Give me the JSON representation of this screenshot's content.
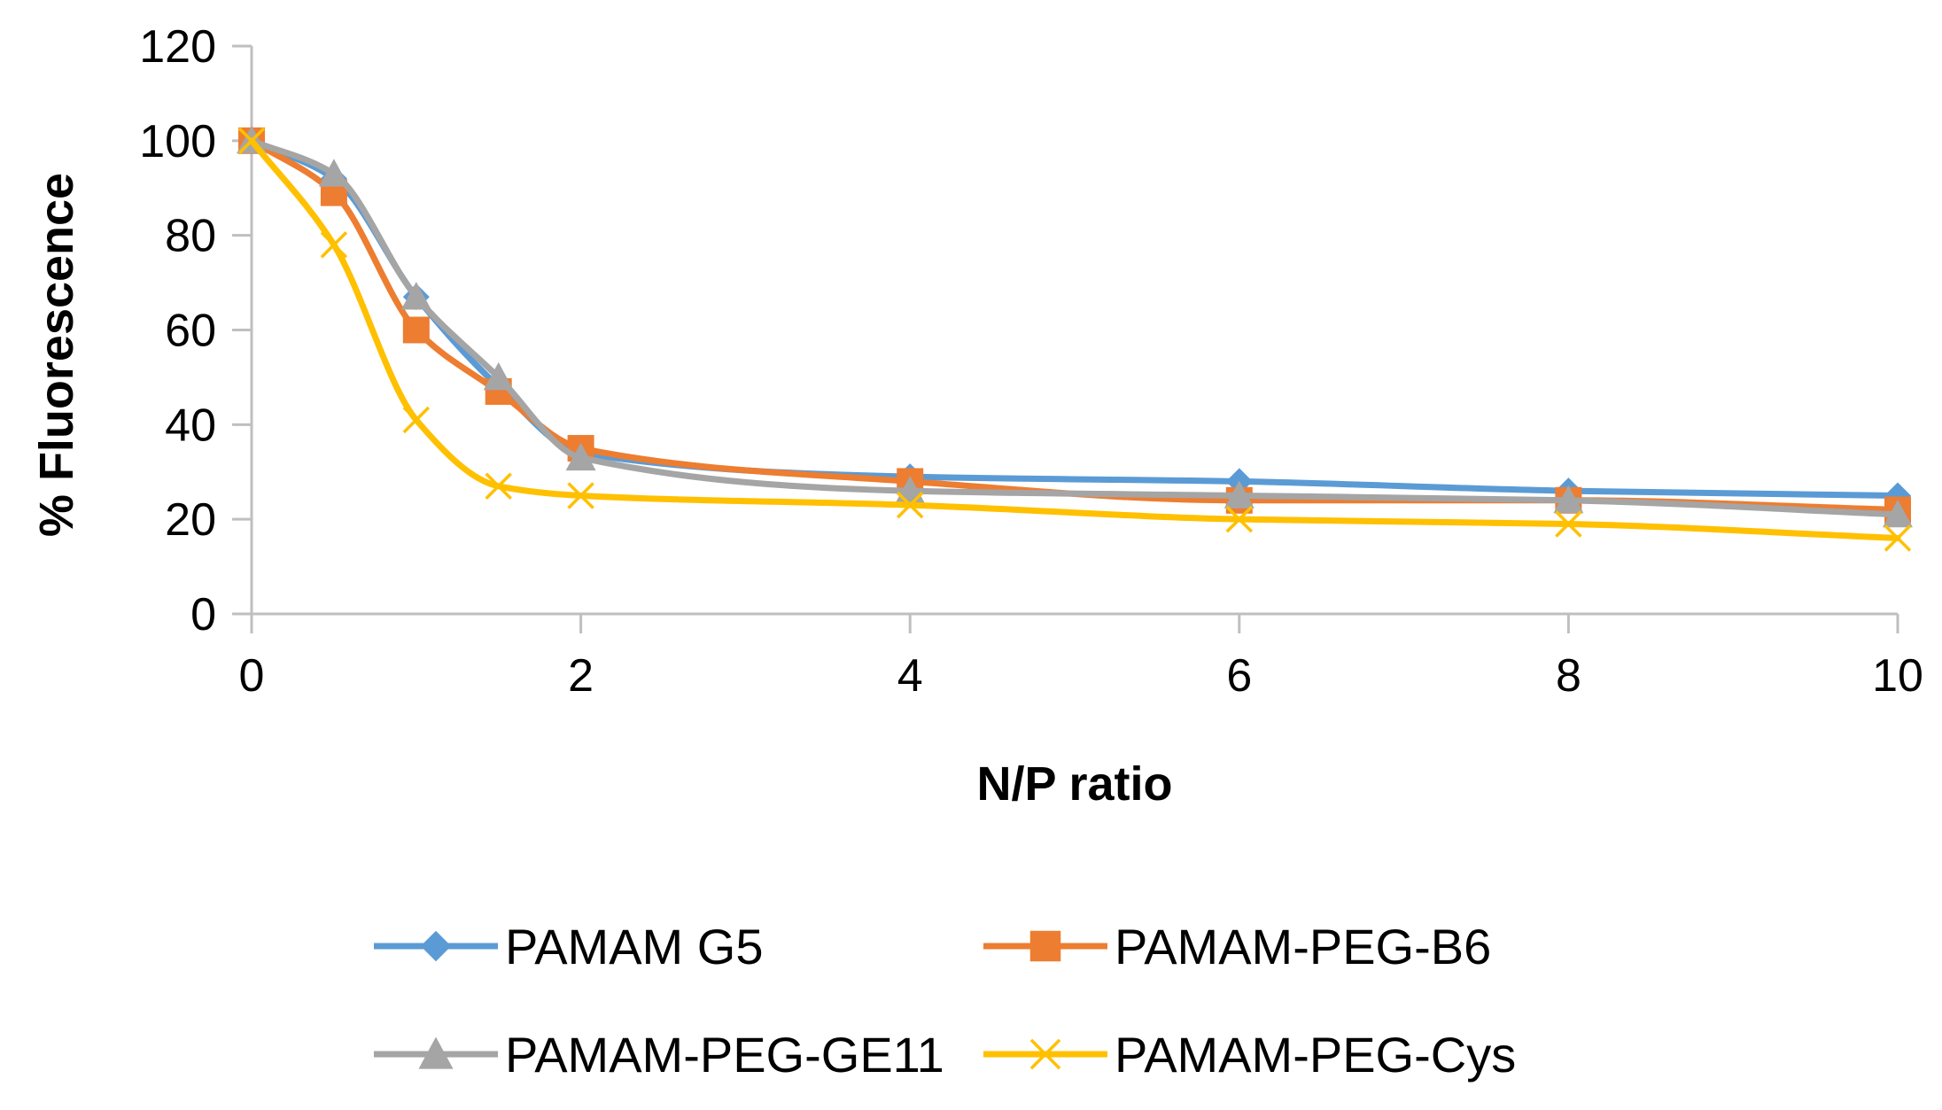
{
  "chart_data": {
    "type": "line",
    "title": "",
    "xlabel": "N/P ratio",
    "ylabel": "% Fluorescence",
    "xlim": [
      0,
      10
    ],
    "ylim": [
      0,
      120
    ],
    "x_ticks": [
      "0",
      "2",
      "4",
      "6",
      "8",
      "10"
    ],
    "y_ticks": [
      "0",
      "20",
      "40",
      "60",
      "80",
      "100",
      "120"
    ],
    "grid": false,
    "legend_position": "bottom",
    "series": [
      {
        "name": "PAMAM G5",
        "color": "#5B9BD5",
        "marker": "diamond",
        "x": [
          0,
          0.5,
          1,
          1.5,
          2,
          4,
          6,
          8,
          10
        ],
        "y": [
          100,
          92,
          67,
          48,
          34,
          29,
          28,
          26,
          25
        ]
      },
      {
        "name": "PAMAM-PEG-B6",
        "color": "#ED7D31",
        "marker": "square",
        "x": [
          0,
          0.5,
          1,
          1.5,
          2,
          4,
          6,
          8,
          10
        ],
        "y": [
          100,
          89,
          60,
          47,
          35,
          28,
          24,
          24,
          22
        ]
      },
      {
        "name": "PAMAM-PEG-GE11",
        "color": "#A5A5A5",
        "marker": "triangle",
        "x": [
          0,
          0.5,
          1,
          1.5,
          2,
          4,
          6,
          8,
          10
        ],
        "y": [
          100,
          93,
          67,
          50,
          33,
          26,
          25,
          24,
          21
        ]
      },
      {
        "name": "PAMAM-PEG-Cys",
        "color": "#FFC000",
        "marker": "x",
        "x": [
          0,
          0.5,
          1,
          1.5,
          2,
          4,
          6,
          8,
          10
        ],
        "y": [
          100,
          78,
          41,
          27,
          25,
          23,
          20,
          19,
          16
        ]
      }
    ]
  }
}
